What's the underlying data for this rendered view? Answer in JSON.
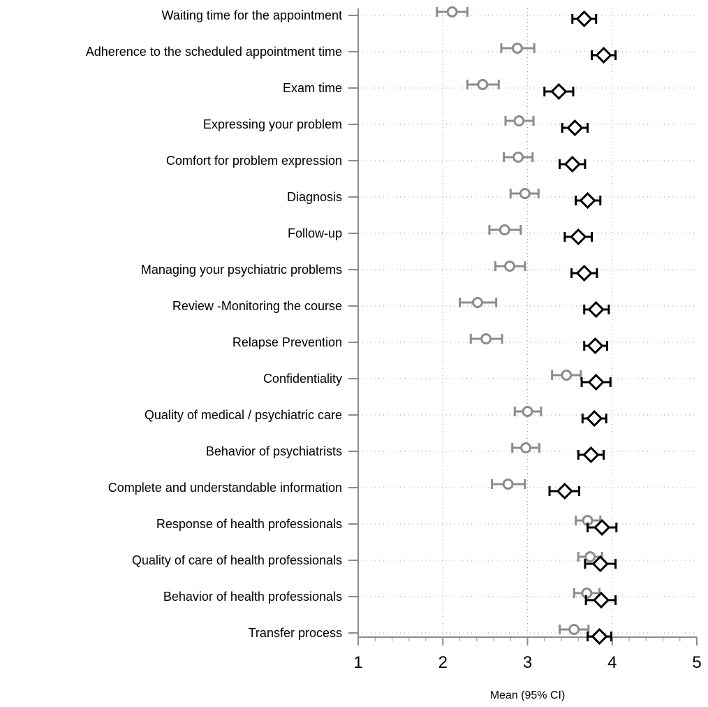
{
  "chart_data": {
    "type": "scatter",
    "xlabel": "Mean (95% CI)",
    "xlim": [
      1,
      5
    ],
    "xticks": [
      1,
      2,
      3,
      4,
      5
    ],
    "x_grid": "dotted vertical",
    "y_grid": "dotted horizontal",
    "categories": [
      "Waiting time for the appointment",
      "Adherence to the scheduled appointment time",
      "Exam time",
      "Expressing your problem",
      "Comfort for problem expression",
      "Diagnosis",
      "Follow-up",
      "Managing your psychiatric problems",
      "Review -Monitoring the course",
      "Relapse Prevention",
      "Confidentiality",
      "Quality of medical / psychiatric care",
      "Behavior of psychiatrists",
      "Complete and understandable information",
      "Response of health professionals",
      "Quality of care of health professionals",
      "Behavior of health professionals",
      "Transfer process"
    ],
    "series": [
      {
        "marker": "circle",
        "color": "#8c8c8c",
        "mean": [
          2.11,
          2.88,
          2.47,
          2.9,
          2.89,
          2.97,
          2.73,
          2.79,
          2.41,
          2.51,
          3.46,
          3.0,
          2.98,
          2.77,
          3.71,
          3.74,
          3.7,
          3.55
        ],
        "lower": [
          1.93,
          2.69,
          2.29,
          2.74,
          2.72,
          2.8,
          2.55,
          2.62,
          2.2,
          2.33,
          3.29,
          2.85,
          2.82,
          2.58,
          3.57,
          3.6,
          3.55,
          3.38
        ],
        "upper": [
          2.29,
          3.08,
          2.66,
          3.07,
          3.06,
          3.13,
          2.92,
          2.97,
          2.63,
          2.7,
          3.63,
          3.16,
          3.14,
          2.97,
          3.86,
          3.88,
          3.85,
          3.72
        ]
      },
      {
        "marker": "diamond",
        "color": "#000000",
        "mean": [
          3.67,
          3.9,
          3.37,
          3.56,
          3.53,
          3.71,
          3.6,
          3.67,
          3.81,
          3.8,
          3.81,
          3.79,
          3.75,
          3.44,
          3.88,
          3.86,
          3.87,
          3.85
        ],
        "lower": [
          3.53,
          3.76,
          3.2,
          3.41,
          3.38,
          3.57,
          3.44,
          3.52,
          3.67,
          3.67,
          3.64,
          3.65,
          3.6,
          3.26,
          3.71,
          3.68,
          3.69,
          3.71
        ],
        "upper": [
          3.81,
          4.04,
          3.54,
          3.71,
          3.68,
          3.86,
          3.76,
          3.82,
          3.96,
          3.94,
          3.98,
          3.93,
          3.9,
          3.61,
          4.05,
          4.04,
          4.04,
          3.99
        ]
      }
    ]
  }
}
